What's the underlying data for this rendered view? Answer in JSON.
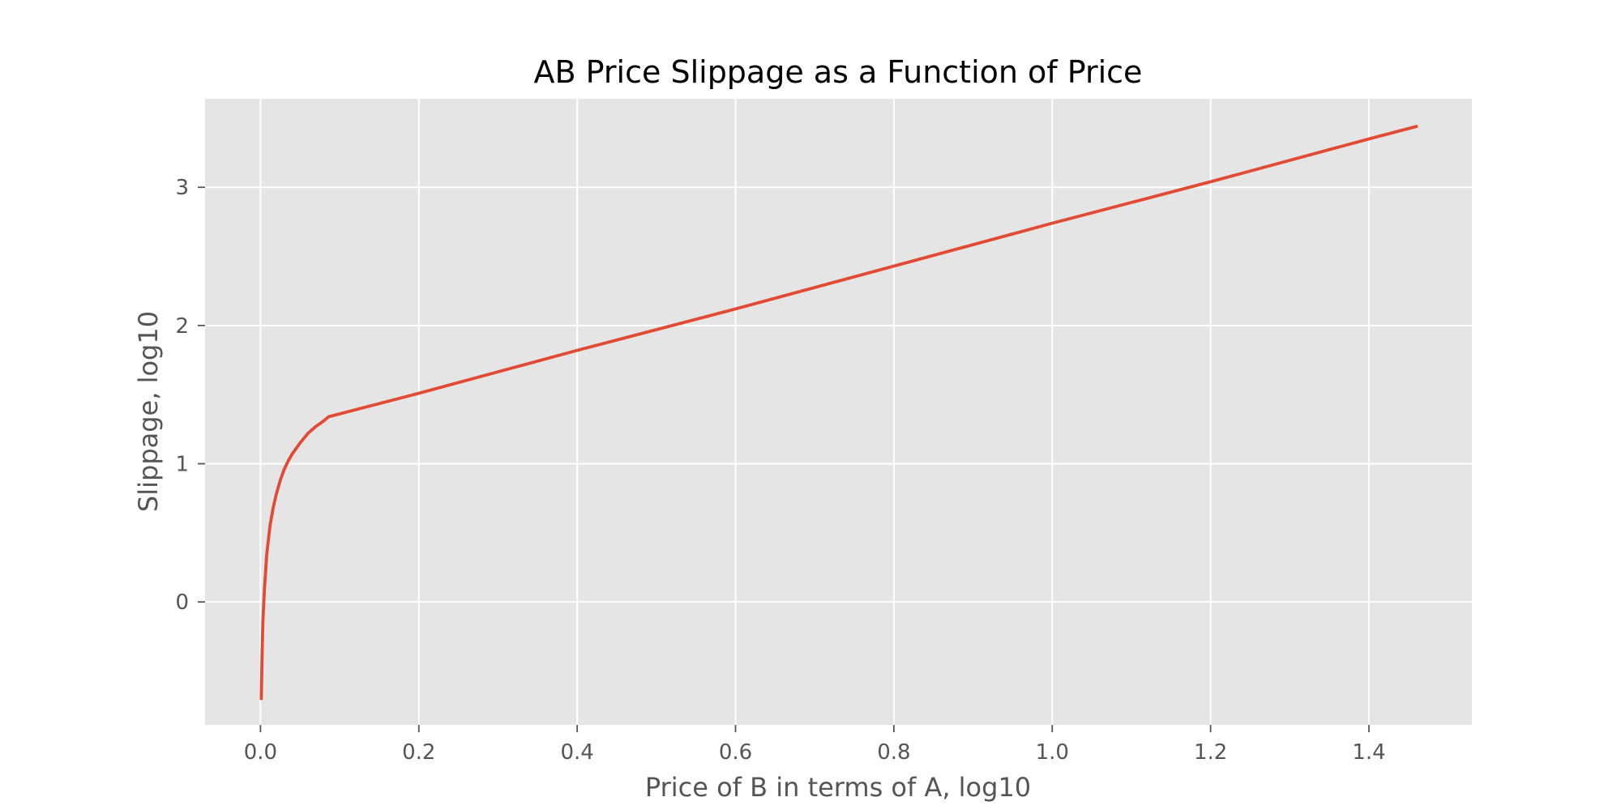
{
  "chart_data": {
    "type": "line",
    "title": "AB Price Slippage as a Function of Price",
    "xlabel": "Price of B in terms of A, log10",
    "ylabel": "Slippage, log10",
    "xlim": [
      -0.07,
      1.53
    ],
    "ylim": [
      -0.89,
      3.64
    ],
    "grid": true,
    "xticks": [
      0.0,
      0.2,
      0.4,
      0.6,
      0.8,
      1.0,
      1.2,
      1.4
    ],
    "xtick_labels": [
      "0.0",
      "0.2",
      "0.4",
      "0.6",
      "0.8",
      "1.0",
      "1.2",
      "1.4"
    ],
    "yticks": [
      0,
      1,
      2,
      3
    ],
    "ytick_labels": [
      "0",
      "1",
      "2",
      "3"
    ],
    "series": [
      {
        "color": "#E24A33",
        "x": [
          0.001,
          0.002,
          0.003,
          0.005,
          0.008,
          0.012,
          0.016,
          0.02,
          0.025,
          0.03,
          0.035,
          0.04,
          0.05,
          0.06,
          0.07,
          0.08,
          0.086,
          0.2,
          0.4,
          0.6,
          0.8,
          1.0,
          1.2,
          1.4,
          1.46
        ],
        "y": [
          -0.7,
          -0.4,
          -0.15,
          0.1,
          0.35,
          0.55,
          0.68,
          0.78,
          0.88,
          0.96,
          1.02,
          1.07,
          1.15,
          1.22,
          1.27,
          1.31,
          1.34,
          1.51,
          1.82,
          2.12,
          2.43,
          2.74,
          3.04,
          3.35,
          3.44
        ]
      }
    ]
  }
}
